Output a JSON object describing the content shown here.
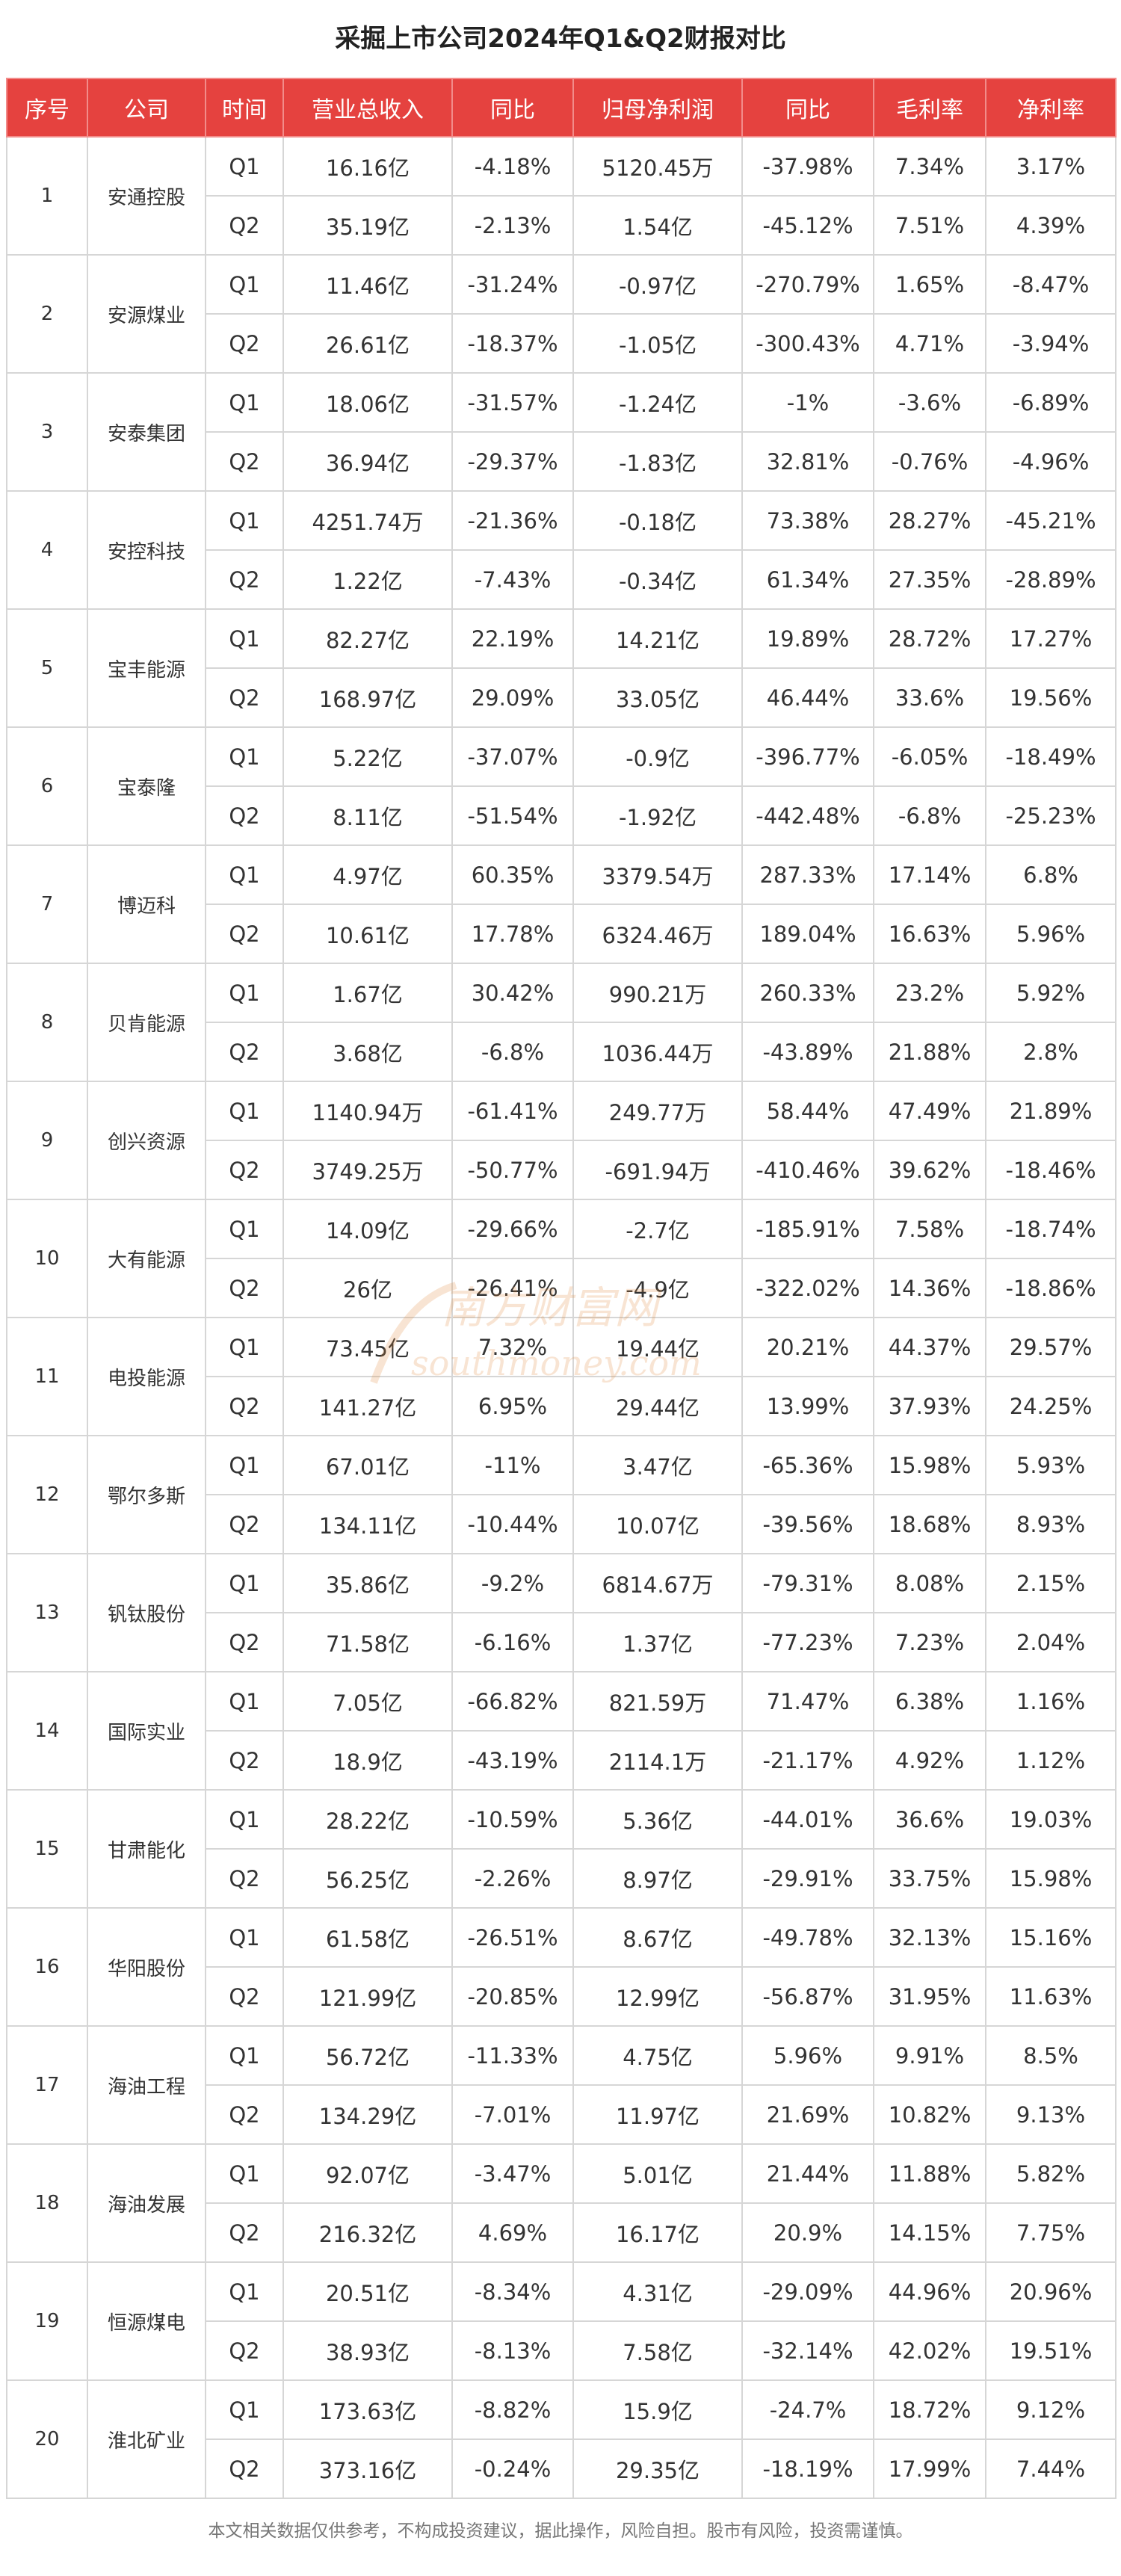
{
  "title": "采掘上市公司2024年Q1&Q2财报对比",
  "headers": [
    "序号",
    "公司",
    "时间",
    "营业总收入",
    "同比",
    "归母净利润",
    "同比",
    "毛利率",
    "净利率"
  ],
  "companies": [
    {
      "seq": "1",
      "name": "安通控股",
      "rows": [
        {
          "period": "Q1",
          "revenue": "16.16亿",
          "rev_yoy": "-4.18%",
          "profit": "5120.45万",
          "profit_yoy": "-37.98%",
          "gross": "7.34%",
          "net": "3.17%"
        },
        {
          "period": "Q2",
          "revenue": "35.19亿",
          "rev_yoy": "-2.13%",
          "profit": "1.54亿",
          "profit_yoy": "-45.12%",
          "gross": "7.51%",
          "net": "4.39%"
        }
      ]
    },
    {
      "seq": "2",
      "name": "安源煤业",
      "rows": [
        {
          "period": "Q1",
          "revenue": "11.46亿",
          "rev_yoy": "-31.24%",
          "profit": "-0.97亿",
          "profit_yoy": "-270.79%",
          "gross": "1.65%",
          "net": "-8.47%"
        },
        {
          "period": "Q2",
          "revenue": "26.61亿",
          "rev_yoy": "-18.37%",
          "profit": "-1.05亿",
          "profit_yoy": "-300.43%",
          "gross": "4.71%",
          "net": "-3.94%"
        }
      ]
    },
    {
      "seq": "3",
      "name": "安泰集团",
      "rows": [
        {
          "period": "Q1",
          "revenue": "18.06亿",
          "rev_yoy": "-31.57%",
          "profit": "-1.24亿",
          "profit_yoy": "-1%",
          "gross": "-3.6%",
          "net": "-6.89%"
        },
        {
          "period": "Q2",
          "revenue": "36.94亿",
          "rev_yoy": "-29.37%",
          "profit": "-1.83亿",
          "profit_yoy": "32.81%",
          "gross": "-0.76%",
          "net": "-4.96%"
        }
      ]
    },
    {
      "seq": "4",
      "name": "安控科技",
      "rows": [
        {
          "period": "Q1",
          "revenue": "4251.74万",
          "rev_yoy": "-21.36%",
          "profit": "-0.18亿",
          "profit_yoy": "73.38%",
          "gross": "28.27%",
          "net": "-45.21%"
        },
        {
          "period": "Q2",
          "revenue": "1.22亿",
          "rev_yoy": "-7.43%",
          "profit": "-0.34亿",
          "profit_yoy": "61.34%",
          "gross": "27.35%",
          "net": "-28.89%"
        }
      ]
    },
    {
      "seq": "5",
      "name": "宝丰能源",
      "rows": [
        {
          "period": "Q1",
          "revenue": "82.27亿",
          "rev_yoy": "22.19%",
          "profit": "14.21亿",
          "profit_yoy": "19.89%",
          "gross": "28.72%",
          "net": "17.27%"
        },
        {
          "period": "Q2",
          "revenue": "168.97亿",
          "rev_yoy": "29.09%",
          "profit": "33.05亿",
          "profit_yoy": "46.44%",
          "gross": "33.6%",
          "net": "19.56%"
        }
      ]
    },
    {
      "seq": "6",
      "name": "宝泰隆",
      "rows": [
        {
          "period": "Q1",
          "revenue": "5.22亿",
          "rev_yoy": "-37.07%",
          "profit": "-0.9亿",
          "profit_yoy": "-396.77%",
          "gross": "-6.05%",
          "net": "-18.49%"
        },
        {
          "period": "Q2",
          "revenue": "8.11亿",
          "rev_yoy": "-51.54%",
          "profit": "-1.92亿",
          "profit_yoy": "-442.48%",
          "gross": "-6.8%",
          "net": "-25.23%"
        }
      ]
    },
    {
      "seq": "7",
      "name": "博迈科",
      "rows": [
        {
          "period": "Q1",
          "revenue": "4.97亿",
          "rev_yoy": "60.35%",
          "profit": "3379.54万",
          "profit_yoy": "287.33%",
          "gross": "17.14%",
          "net": "6.8%"
        },
        {
          "period": "Q2",
          "revenue": "10.61亿",
          "rev_yoy": "17.78%",
          "profit": "6324.46万",
          "profit_yoy": "189.04%",
          "gross": "16.63%",
          "net": "5.96%"
        }
      ]
    },
    {
      "seq": "8",
      "name": "贝肯能源",
      "rows": [
        {
          "period": "Q1",
          "revenue": "1.67亿",
          "rev_yoy": "30.42%",
          "profit": "990.21万",
          "profit_yoy": "260.33%",
          "gross": "23.2%",
          "net": "5.92%"
        },
        {
          "period": "Q2",
          "revenue": "3.68亿",
          "rev_yoy": "-6.8%",
          "profit": "1036.44万",
          "profit_yoy": "-43.89%",
          "gross": "21.88%",
          "net": "2.8%"
        }
      ]
    },
    {
      "seq": "9",
      "name": "创兴资源",
      "rows": [
        {
          "period": "Q1",
          "revenue": "1140.94万",
          "rev_yoy": "-61.41%",
          "profit": "249.77万",
          "profit_yoy": "58.44%",
          "gross": "47.49%",
          "net": "21.89%"
        },
        {
          "period": "Q2",
          "revenue": "3749.25万",
          "rev_yoy": "-50.77%",
          "profit": "-691.94万",
          "profit_yoy": "-410.46%",
          "gross": "39.62%",
          "net": "-18.46%"
        }
      ]
    },
    {
      "seq": "10",
      "name": "大有能源",
      "rows": [
        {
          "period": "Q1",
          "revenue": "14.09亿",
          "rev_yoy": "-29.66%",
          "profit": "-2.7亿",
          "profit_yoy": "-185.91%",
          "gross": "7.58%",
          "net": "-18.74%"
        },
        {
          "period": "Q2",
          "revenue": "26亿",
          "rev_yoy": "-26.41%",
          "profit": "-4.9亿",
          "profit_yoy": "-322.02%",
          "gross": "14.36%",
          "net": "-18.86%"
        }
      ]
    },
    {
      "seq": "11",
      "name": "电投能源",
      "rows": [
        {
          "period": "Q1",
          "revenue": "73.45亿",
          "rev_yoy": "7.32%",
          "profit": "19.44亿",
          "profit_yoy": "20.21%",
          "gross": "44.37%",
          "net": "29.57%"
        },
        {
          "period": "Q2",
          "revenue": "141.27亿",
          "rev_yoy": "6.95%",
          "profit": "29.44亿",
          "profit_yoy": "13.99%",
          "gross": "37.93%",
          "net": "24.25%"
        }
      ]
    },
    {
      "seq": "12",
      "name": "鄂尔多斯",
      "rows": [
        {
          "period": "Q1",
          "revenue": "67.01亿",
          "rev_yoy": "-11%",
          "profit": "3.47亿",
          "profit_yoy": "-65.36%",
          "gross": "15.98%",
          "net": "5.93%"
        },
        {
          "period": "Q2",
          "revenue": "134.11亿",
          "rev_yoy": "-10.44%",
          "profit": "10.07亿",
          "profit_yoy": "-39.56%",
          "gross": "18.68%",
          "net": "8.93%"
        }
      ]
    },
    {
      "seq": "13",
      "name": "钒钛股份",
      "rows": [
        {
          "period": "Q1",
          "revenue": "35.86亿",
          "rev_yoy": "-9.2%",
          "profit": "6814.67万",
          "profit_yoy": "-79.31%",
          "gross": "8.08%",
          "net": "2.15%"
        },
        {
          "period": "Q2",
          "revenue": "71.58亿",
          "rev_yoy": "-6.16%",
          "profit": "1.37亿",
          "profit_yoy": "-77.23%",
          "gross": "7.23%",
          "net": "2.04%"
        }
      ]
    },
    {
      "seq": "14",
      "name": "国际实业",
      "rows": [
        {
          "period": "Q1",
          "revenue": "7.05亿",
          "rev_yoy": "-66.82%",
          "profit": "821.59万",
          "profit_yoy": "71.47%",
          "gross": "6.38%",
          "net": "1.16%"
        },
        {
          "period": "Q2",
          "revenue": "18.9亿",
          "rev_yoy": "-43.19%",
          "profit": "2114.1万",
          "profit_yoy": "-21.17%",
          "gross": "4.92%",
          "net": "1.12%"
        }
      ]
    },
    {
      "seq": "15",
      "name": "甘肃能化",
      "rows": [
        {
          "period": "Q1",
          "revenue": "28.22亿",
          "rev_yoy": "-10.59%",
          "profit": "5.36亿",
          "profit_yoy": "-44.01%",
          "gross": "36.6%",
          "net": "19.03%"
        },
        {
          "period": "Q2",
          "revenue": "56.25亿",
          "rev_yoy": "-2.26%",
          "profit": "8.97亿",
          "profit_yoy": "-29.91%",
          "gross": "33.75%",
          "net": "15.98%"
        }
      ]
    },
    {
      "seq": "16",
      "name": "华阳股份",
      "rows": [
        {
          "period": "Q1",
          "revenue": "61.58亿",
          "rev_yoy": "-26.51%",
          "profit": "8.67亿",
          "profit_yoy": "-49.78%",
          "gross": "32.13%",
          "net": "15.16%"
        },
        {
          "period": "Q2",
          "revenue": "121.99亿",
          "rev_yoy": "-20.85%",
          "profit": "12.99亿",
          "profit_yoy": "-56.87%",
          "gross": "31.95%",
          "net": "11.63%"
        }
      ]
    },
    {
      "seq": "17",
      "name": "海油工程",
      "rows": [
        {
          "period": "Q1",
          "revenue": "56.72亿",
          "rev_yoy": "-11.33%",
          "profit": "4.75亿",
          "profit_yoy": "5.96%",
          "gross": "9.91%",
          "net": "8.5%"
        },
        {
          "period": "Q2",
          "revenue": "134.29亿",
          "rev_yoy": "-7.01%",
          "profit": "11.97亿",
          "profit_yoy": "21.69%",
          "gross": "10.82%",
          "net": "9.13%"
        }
      ]
    },
    {
      "seq": "18",
      "name": "海油发展",
      "rows": [
        {
          "period": "Q1",
          "revenue": "92.07亿",
          "rev_yoy": "-3.47%",
          "profit": "5.01亿",
          "profit_yoy": "21.44%",
          "gross": "11.88%",
          "net": "5.82%"
        },
        {
          "period": "Q2",
          "revenue": "216.32亿",
          "rev_yoy": "4.69%",
          "profit": "16.17亿",
          "profit_yoy": "20.9%",
          "gross": "14.15%",
          "net": "7.75%"
        }
      ]
    },
    {
      "seq": "19",
      "name": "恒源煤电",
      "rows": [
        {
          "period": "Q1",
          "revenue": "20.51亿",
          "rev_yoy": "-8.34%",
          "profit": "4.31亿",
          "profit_yoy": "-29.09%",
          "gross": "44.96%",
          "net": "20.96%"
        },
        {
          "period": "Q2",
          "revenue": "38.93亿",
          "rev_yoy": "-8.13%",
          "profit": "7.58亿",
          "profit_yoy": "-32.14%",
          "gross": "42.02%",
          "net": "19.51%"
        }
      ]
    },
    {
      "seq": "20",
      "name": "淮北矿业",
      "rows": [
        {
          "period": "Q1",
          "revenue": "173.63亿",
          "rev_yoy": "-8.82%",
          "profit": "15.9亿",
          "profit_yoy": "-24.7%",
          "gross": "18.72%",
          "net": "9.12%"
        },
        {
          "period": "Q2",
          "revenue": "373.16亿",
          "rev_yoy": "-0.24%",
          "profit": "29.35亿",
          "profit_yoy": "-18.19%",
          "gross": "17.99%",
          "net": "7.44%"
        }
      ]
    }
  ],
  "watermark": {
    "cn": "南方财富网",
    "en": "southmoney.com"
  },
  "footer": "本文相关数据仅供参考，不构成投资建议，据此操作，风险自担。股市有风险，投资需谨慎。",
  "colors": {
    "header_bg": "#e5423f",
    "header_text": "#ffffff",
    "border": "#d6d6d6",
    "watermark": "#e08a3c"
  }
}
